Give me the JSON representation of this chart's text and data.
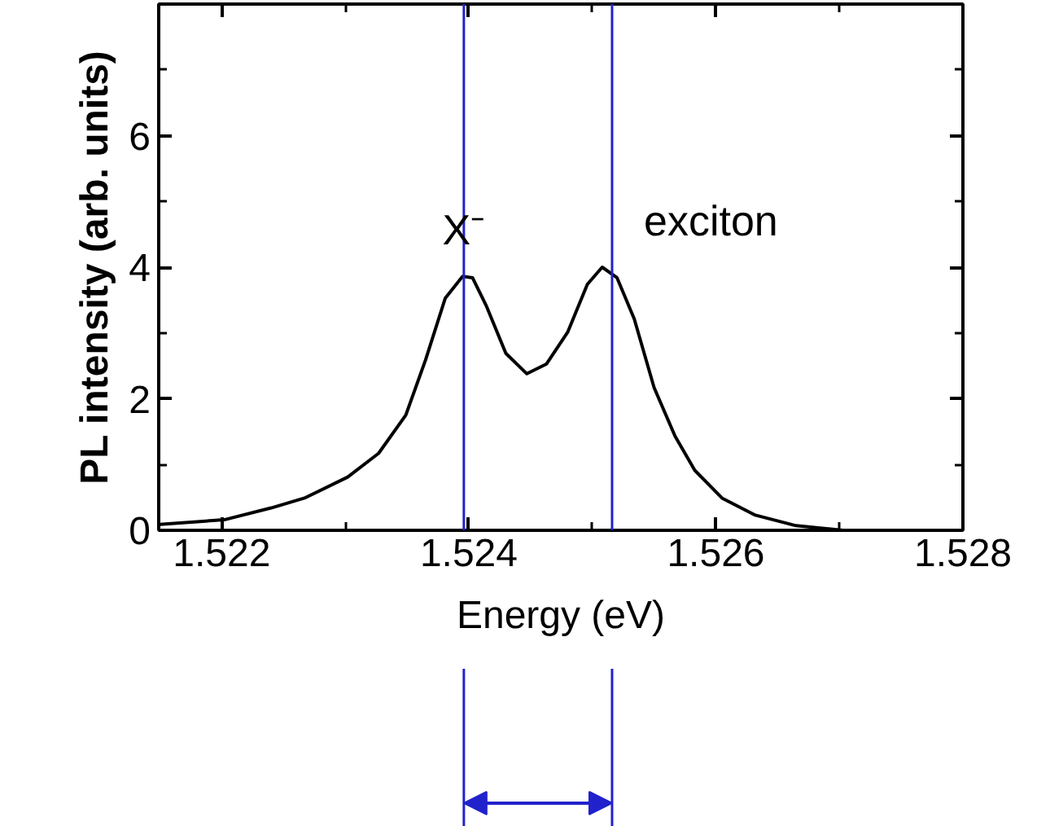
{
  "chart_data": {
    "type": "line",
    "xlabel": "Energy (eV)",
    "ylabel": "PL intensity (arb. units)",
    "x": [
      1.5215,
      1.52202,
      1.5224,
      1.52267,
      1.52302,
      1.52327,
      1.52349,
      1.52365,
      1.52381,
      1.52395,
      1.52403,
      1.52414,
      1.5243,
      1.52447,
      1.52463,
      1.5248,
      1.52496,
      1.52508,
      1.5252,
      1.52534,
      1.5255,
      1.52567,
      1.52583,
      1.52605,
      1.52632,
      1.52665,
      1.52703
    ],
    "series": [
      {
        "color": "#000000",
        "values": [
          0.09,
          0.16,
          0.34,
          0.49,
          0.81,
          1.17,
          1.75,
          2.59,
          3.53,
          3.86,
          3.84,
          3.42,
          2.69,
          2.38,
          2.53,
          3.01,
          3.74,
          4.0,
          3.84,
          3.21,
          2.17,
          1.43,
          0.91,
          0.49,
          0.23,
          0.07,
          0.0
        ]
      }
    ],
    "xlim": [
      1.52149,
      1.528
    ],
    "xticks": [
      1.522,
      1.524,
      1.526,
      1.528
    ],
    "ylim": [
      0,
      8
    ],
    "yticks": [
      0,
      2,
      4,
      6
    ],
    "grid": false,
    "marker": "none",
    "line_style": "solid",
    "annotations": [
      {
        "text": "X⁻",
        "x": 1.52396,
        "y": 4.2
      },
      "exciton"
    ],
    "ref_lines": [
      {
        "axis": "x",
        "value": 1.52396,
        "color": "#2222cc"
      },
      {
        "axis": "x",
        "value": 1.52516,
        "color": "#2222cc"
      }
    ]
  }
}
